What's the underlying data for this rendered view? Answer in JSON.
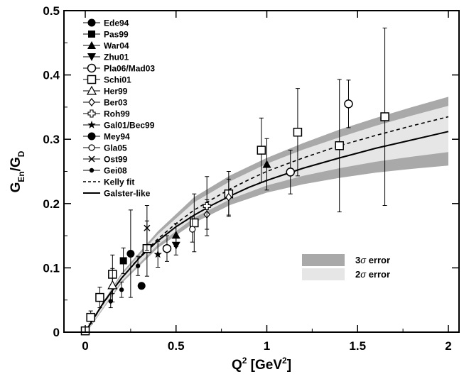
{
  "chart_data": {
    "type": "scatter",
    "xlabel": {
      "base": "Q",
      "sup": "2",
      "rest": " [GeV",
      "sup2": "2",
      "close": "]"
    },
    "ylabel": {
      "g1": "G",
      "sub1": "En",
      "mid": "/G",
      "sub2": "D"
    },
    "xlim": [
      0,
      2
    ],
    "ylim": [
      0,
      0.5
    ],
    "xticks": [
      "0",
      "0.5",
      "1",
      "1.5",
      "2"
    ],
    "yticks": [
      "0",
      "0.1",
      "0.2",
      "0.3",
      "0.4",
      "0.5"
    ],
    "grid": false,
    "legend_position": "top-left",
    "band_legend_position": "bottom-right",
    "colors": {
      "band3": "#a9a9a9",
      "band2": "#e6e6e6",
      "ink": "#000000"
    },
    "band_labels": {
      "three_sigma": {
        "num": "3",
        "greek": "σ",
        "word": " error"
      },
      "two_sigma": {
        "num": "2",
        "greek": "σ",
        "word": " error"
      }
    },
    "series": [
      {
        "name": "Ede94",
        "marker": "circle-filled",
        "points": [
          {
            "x": 0.31,
            "y": 0.072,
            "err": 0
          }
        ]
      },
      {
        "name": "Pas99",
        "marker": "square-filled",
        "points": [
          {
            "x": 0.21,
            "y": 0.111,
            "err": 0.02
          }
        ]
      },
      {
        "name": "War04",
        "marker": "triangle-up-filled",
        "points": [
          {
            "x": 0.5,
            "y": 0.151,
            "err": 0.018
          },
          {
            "x": 1.0,
            "y": 0.261,
            "err": 0.04
          }
        ]
      },
      {
        "name": "Zhu01",
        "marker": "triangle-down-filled",
        "points": [
          {
            "x": 0.5,
            "y": 0.135,
            "err": 0.015
          }
        ]
      },
      {
        "name": "Pla06/Mad03",
        "marker": "circle-open",
        "points": [
          {
            "x": 0.45,
            "y": 0.13,
            "err": 0.02
          },
          {
            "x": 1.13,
            "y": 0.249,
            "err": 0.034
          },
          {
            "x": 1.45,
            "y": 0.355,
            "err": 0.037
          }
        ]
      },
      {
        "name": "Schi01",
        "marker": "square-open",
        "points": [
          {
            "x": 0.0,
            "y": 0.002,
            "err": 0.006
          },
          {
            "x": 0.03,
            "y": 0.023,
            "err": 0.01
          },
          {
            "x": 0.08,
            "y": 0.054,
            "err": 0.016
          },
          {
            "x": 0.15,
            "y": 0.09,
            "err": 0.03
          },
          {
            "x": 0.34,
            "y": 0.13,
            "err": 0.043
          },
          {
            "x": 0.6,
            "y": 0.17,
            "err": 0.045
          },
          {
            "x": 0.79,
            "y": 0.215,
            "err": 0.035
          },
          {
            "x": 0.97,
            "y": 0.283,
            "err": 0.05
          },
          {
            "x": 1.17,
            "y": 0.311,
            "err": 0.068
          },
          {
            "x": 1.4,
            "y": 0.29,
            "err": 0.103
          },
          {
            "x": 1.65,
            "y": 0.335,
            "err": 0.138
          }
        ]
      },
      {
        "name": "Her99",
        "marker": "triangle-up-open",
        "points": [
          {
            "x": 0.15,
            "y": 0.073,
            "err": 0.026
          }
        ]
      },
      {
        "name": "Ber03",
        "marker": "diamond-open",
        "points": [
          {
            "x": 0.67,
            "y": 0.183,
            "err": 0.023
          },
          {
            "x": 0.79,
            "y": 0.21,
            "err": 0.028
          }
        ]
      },
      {
        "name": "Roh99",
        "marker": "plus-open",
        "points": [
          {
            "x": 0.67,
            "y": 0.196,
            "err": 0.046
          }
        ]
      },
      {
        "name": "Gal01/Bec99",
        "marker": "star-filled",
        "points": [
          {
            "x": 0.4,
            "y": 0.121,
            "err": 0.02
          }
        ]
      },
      {
        "name": "Mey94",
        "marker": "circle-filled-large",
        "points": [
          {
            "x": 0.25,
            "y": 0.122,
            "err": 0.068
          }
        ]
      },
      {
        "name": "Gla05",
        "marker": "circle-open-small",
        "points": [
          {
            "x": 0.59,
            "y": 0.16,
            "err": 0.02
          }
        ]
      },
      {
        "name": "Ost99",
        "marker": "cross",
        "points": [
          {
            "x": 0.34,
            "y": 0.162,
            "err": 0.035
          }
        ]
      },
      {
        "name": "Gei08",
        "marker": "circle-filled-small",
        "points": [
          {
            "x": 0.14,
            "y": 0.048,
            "err": 0.01
          },
          {
            "x": 0.2,
            "y": 0.066,
            "err": 0.012
          },
          {
            "x": 0.29,
            "y": 0.103,
            "err": 0.015
          }
        ]
      }
    ],
    "curves": [
      {
        "name": "Kelly fit",
        "style": "dashed",
        "x": [
          0,
          0.1,
          0.2,
          0.3,
          0.4,
          0.5,
          0.6,
          0.7,
          0.8,
          0.9,
          1.0,
          1.2,
          1.4,
          1.6,
          1.8,
          2.0
        ],
        "y": [
          0,
          0.045,
          0.084,
          0.117,
          0.145,
          0.169,
          0.19,
          0.207,
          0.223,
          0.237,
          0.25,
          0.271,
          0.29,
          0.306,
          0.321,
          0.335
        ]
      },
      {
        "name": "Galster-like",
        "style": "solid",
        "x": [
          0,
          0.1,
          0.2,
          0.3,
          0.4,
          0.5,
          0.6,
          0.7,
          0.8,
          0.9,
          1.0,
          1.2,
          1.4,
          1.6,
          1.8,
          2.0
        ],
        "y": [
          0,
          0.046,
          0.084,
          0.116,
          0.142,
          0.164,
          0.182,
          0.198,
          0.212,
          0.225,
          0.236,
          0.255,
          0.271,
          0.286,
          0.299,
          0.312
        ]
      }
    ],
    "bands": {
      "x": [
        0,
        0.2,
        0.4,
        0.6,
        0.8,
        1.0,
        1.2,
        1.4,
        1.6,
        1.8,
        2.0
      ],
      "three_sigma_upper": [
        0.003,
        0.092,
        0.157,
        0.21,
        0.244,
        0.271,
        0.294,
        0.315,
        0.333,
        0.35,
        0.366
      ],
      "two_sigma_upper": [
        0.002,
        0.089,
        0.152,
        0.202,
        0.235,
        0.262,
        0.284,
        0.303,
        0.321,
        0.337,
        0.352
      ],
      "two_sigma_lower": [
        -0.002,
        0.079,
        0.136,
        0.178,
        0.207,
        0.228,
        0.243,
        0.255,
        0.265,
        0.273,
        0.28
      ],
      "three_sigma_lower": [
        -0.003,
        0.076,
        0.131,
        0.17,
        0.198,
        0.217,
        0.23,
        0.24,
        0.248,
        0.254,
        0.259
      ]
    }
  }
}
